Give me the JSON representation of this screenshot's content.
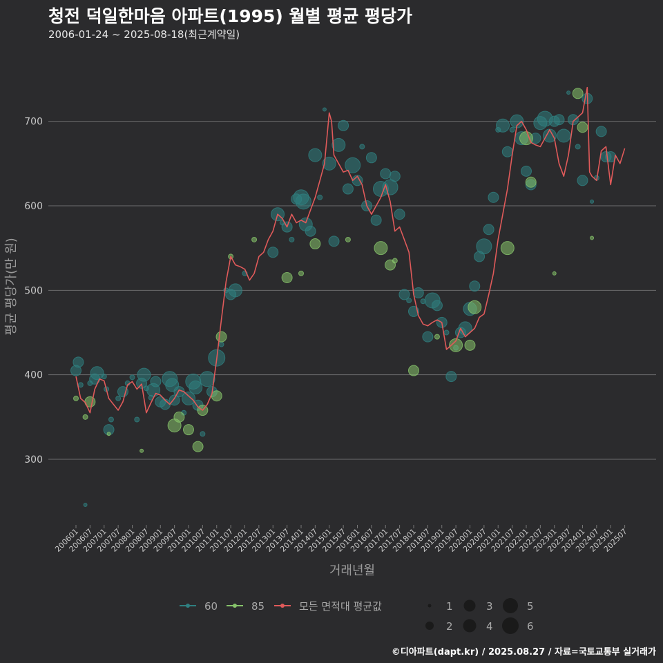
{
  "chart_data": {
    "type": "scatter+line",
    "title": "청전 덕일한마음 아파트(1995) 월별 평균 평당가",
    "subtitle": "2006-01-24 ~ 2025-08-18(최근계약일)",
    "xlabel": "거래년월",
    "ylabel": "평균 평당가(만 원)",
    "yticks": [
      300,
      400,
      500,
      600,
      700
    ],
    "ylim": [
      220,
      770
    ],
    "x_tick_labels": [
      "200601",
      "200607",
      "200701",
      "200707",
      "200801",
      "200807",
      "200901",
      "200907",
      "201001",
      "201007",
      "201101",
      "201107",
      "201201",
      "201207",
      "201301",
      "201307",
      "201401",
      "201407",
      "201501",
      "201507",
      "201601",
      "201607",
      "201701",
      "201707",
      "201801",
      "201807",
      "201901",
      "201907",
      "202001",
      "202007",
      "202101",
      "202107",
      "202201",
      "202207",
      "202301",
      "202307",
      "202401",
      "202407",
      "202501",
      "202507"
    ],
    "colors": {
      "s60": "#2f7f80",
      "s85": "#86c36a",
      "avg": "#e05a5a"
    },
    "line": {
      "name": "모든 면적대 평균값",
      "points": [
        [
          "200601",
          398
        ],
        [
          "200603",
          372
        ],
        [
          "200605",
          367
        ],
        [
          "200607",
          355
        ],
        [
          "200609",
          383
        ],
        [
          "200611",
          395
        ],
        [
          "200701",
          393
        ],
        [
          "200703",
          372
        ],
        [
          "200705",
          365
        ],
        [
          "200707",
          358
        ],
        [
          "200709",
          368
        ],
        [
          "200711",
          388
        ],
        [
          "200801",
          392
        ],
        [
          "200803",
          383
        ],
        [
          "200805",
          389
        ],
        [
          "200807",
          355
        ],
        [
          "200809",
          367
        ],
        [
          "200811",
          378
        ],
        [
          "200901",
          376
        ],
        [
          "200903",
          370
        ],
        [
          "200905",
          365
        ],
        [
          "200907",
          372
        ],
        [
          "200909",
          382
        ],
        [
          "200911",
          380
        ],
        [
          "201001",
          375
        ],
        [
          "201003",
          370
        ],
        [
          "201005",
          362
        ],
        [
          "201007",
          358
        ],
        [
          "201009",
          365
        ],
        [
          "201011",
          378
        ],
        [
          "201101",
          418
        ],
        [
          "201103",
          465
        ],
        [
          "201105",
          510
        ],
        [
          "201107",
          540
        ],
        [
          "201109",
          530
        ],
        [
          "201111",
          528
        ],
        [
          "201201",
          525
        ],
        [
          "201203",
          512
        ],
        [
          "201205",
          520
        ],
        [
          "201207",
          540
        ],
        [
          "201209",
          545
        ],
        [
          "201211",
          560
        ],
        [
          "201301",
          570
        ],
        [
          "201303",
          590
        ],
        [
          "201305",
          585
        ],
        [
          "201307",
          575
        ],
        [
          "201309",
          590
        ],
        [
          "201311",
          580
        ],
        [
          "201401",
          583
        ],
        [
          "201403",
          580
        ],
        [
          "201405",
          595
        ],
        [
          "201407",
          610
        ],
        [
          "201409",
          630
        ],
        [
          "201411",
          650
        ],
        [
          "201501",
          710
        ],
        [
          "201502",
          700
        ],
        [
          "201503",
          660
        ],
        [
          "201505",
          650
        ],
        [
          "201507",
          640
        ],
        [
          "201509",
          642
        ],
        [
          "201511",
          630
        ],
        [
          "201601",
          635
        ],
        [
          "201603",
          625
        ],
        [
          "201605",
          600
        ],
        [
          "201607",
          590
        ],
        [
          "201609",
          600
        ],
        [
          "201611",
          610
        ],
        [
          "201701",
          625
        ],
        [
          "201703",
          605
        ],
        [
          "201705",
          570
        ],
        [
          "201707",
          575
        ],
        [
          "201709",
          560
        ],
        [
          "201711",
          545
        ],
        [
          "201801",
          495
        ],
        [
          "201803",
          470
        ],
        [
          "201805",
          460
        ],
        [
          "201807",
          458
        ],
        [
          "201809",
          462
        ],
        [
          "201811",
          465
        ],
        [
          "201901",
          462
        ],
        [
          "201903",
          430
        ],
        [
          "201905",
          435
        ],
        [
          "201907",
          440
        ],
        [
          "201909",
          455
        ],
        [
          "201911",
          445
        ],
        [
          "202001",
          450
        ],
        [
          "202003",
          455
        ],
        [
          "202005",
          468
        ],
        [
          "202007",
          472
        ],
        [
          "202009",
          495
        ],
        [
          "202011",
          520
        ],
        [
          "202101",
          560
        ],
        [
          "202103",
          590
        ],
        [
          "202105",
          620
        ],
        [
          "202107",
          660
        ],
        [
          "202109",
          695
        ],
        [
          "202111",
          700
        ],
        [
          "202201",
          690
        ],
        [
          "202203",
          675
        ],
        [
          "202205",
          672
        ],
        [
          "202207",
          670
        ],
        [
          "202209",
          680
        ],
        [
          "202211",
          690
        ],
        [
          "202301",
          680
        ],
        [
          "202303",
          650
        ],
        [
          "202305",
          635
        ],
        [
          "202307",
          660
        ],
        [
          "202309",
          700
        ],
        [
          "202311",
          705
        ],
        [
          "202401",
          710
        ],
        [
          "202403",
          740
        ],
        [
          "202404",
          640
        ],
        [
          "202405",
          635
        ],
        [
          "202407",
          630
        ],
        [
          "202409",
          665
        ],
        [
          "202411",
          670
        ],
        [
          "202501",
          625
        ],
        [
          "202503",
          660
        ],
        [
          "202505",
          650
        ],
        [
          "202507",
          668
        ]
      ]
    },
    "series": [
      {
        "name": "60",
        "points": [
          [
            "200601",
            405,
            3
          ],
          [
            "200602",
            415,
            3
          ],
          [
            "200603",
            388,
            2
          ],
          [
            "200605",
            246,
            1
          ],
          [
            "200607",
            390,
            2
          ],
          [
            "200609",
            395,
            3
          ],
          [
            "200610",
            402,
            4
          ],
          [
            "200701",
            398,
            2
          ],
          [
            "200702",
            383,
            2
          ],
          [
            "200703",
            335,
            3
          ],
          [
            "200704",
            347,
            2
          ],
          [
            "200707",
            372,
            2
          ],
          [
            "200709",
            380,
            3
          ],
          [
            "200711",
            390,
            2
          ],
          [
            "200801",
            397,
            2
          ],
          [
            "200803",
            347,
            2
          ],
          [
            "200805",
            390,
            3
          ],
          [
            "200806",
            400,
            4
          ],
          [
            "200807",
            384,
            2
          ],
          [
            "200809",
            373,
            2
          ],
          [
            "200810",
            382,
            4
          ],
          [
            "200811",
            392,
            3
          ],
          [
            "200901",
            368,
            3
          ],
          [
            "200903",
            365,
            3
          ],
          [
            "200905",
            395,
            5
          ],
          [
            "200906",
            388,
            4
          ],
          [
            "200907",
            370,
            3
          ],
          [
            "200909",
            380,
            3
          ],
          [
            "200911",
            355,
            2
          ],
          [
            "201001",
            372,
            4
          ],
          [
            "201003",
            392,
            5
          ],
          [
            "201004",
            385,
            4
          ],
          [
            "201005",
            364,
            3
          ],
          [
            "201007",
            330,
            2
          ],
          [
            "201009",
            395,
            5
          ],
          [
            "201011",
            380,
            3
          ],
          [
            "201101",
            420,
            6
          ],
          [
            "201103",
            436,
            2
          ],
          [
            "201105",
            500,
            2
          ],
          [
            "201107",
            495,
            3
          ],
          [
            "201109",
            500,
            4
          ],
          [
            "201201",
            520,
            2
          ],
          [
            "201301",
            545,
            3
          ],
          [
            "201303",
            590,
            4
          ],
          [
            "201305",
            580,
            2
          ],
          [
            "201307",
            575,
            3
          ],
          [
            "201309",
            560,
            2
          ],
          [
            "201311",
            608,
            3
          ],
          [
            "201401",
            610,
            5
          ],
          [
            "201402",
            605,
            5
          ],
          [
            "201403",
            578,
            4
          ],
          [
            "201405",
            570,
            3
          ],
          [
            "201407",
            660,
            4
          ],
          [
            "201409",
            610,
            2
          ],
          [
            "201411",
            714,
            1
          ],
          [
            "201501",
            650,
            4
          ],
          [
            "201503",
            558,
            3
          ],
          [
            "201505",
            672,
            4
          ],
          [
            "201507",
            695,
            3
          ],
          [
            "201509",
            620,
            3
          ],
          [
            "201511",
            648,
            5
          ],
          [
            "201601",
            630,
            3
          ],
          [
            "201603",
            670,
            2
          ],
          [
            "201605",
            600,
            3
          ],
          [
            "201607",
            657,
            3
          ],
          [
            "201609",
            583,
            3
          ],
          [
            "201611",
            620,
            5
          ],
          [
            "201701",
            638,
            3
          ],
          [
            "201703",
            622,
            5
          ],
          [
            "201705",
            635,
            3
          ],
          [
            "201707",
            590,
            3
          ],
          [
            "201709",
            495,
            3
          ],
          [
            "201711",
            488,
            2
          ],
          [
            "201801",
            475,
            3
          ],
          [
            "201803",
            497,
            3
          ],
          [
            "201805",
            487,
            2
          ],
          [
            "201807",
            445,
            3
          ],
          [
            "201809",
            488,
            5
          ],
          [
            "201811",
            482,
            3
          ],
          [
            "201901",
            462,
            3
          ],
          [
            "201903",
            450,
            2
          ],
          [
            "201905",
            398,
            3
          ],
          [
            "201907",
            432,
            2
          ],
          [
            "201909",
            450,
            3
          ],
          [
            "201911",
            455,
            4
          ],
          [
            "202001",
            478,
            4
          ],
          [
            "202003",
            505,
            3
          ],
          [
            "202005",
            540,
            3
          ],
          [
            "202007",
            552,
            5
          ],
          [
            "202009",
            572,
            3
          ],
          [
            "202011",
            610,
            3
          ],
          [
            "202101",
            690,
            2
          ],
          [
            "202103",
            695,
            4
          ],
          [
            "202105",
            664,
            3
          ],
          [
            "202107",
            690,
            2
          ],
          [
            "202109",
            700,
            4
          ],
          [
            "202111",
            680,
            4
          ],
          [
            "202201",
            641,
            3
          ],
          [
            "202203",
            625,
            3
          ],
          [
            "202205",
            680,
            3
          ],
          [
            "202207",
            698,
            4
          ],
          [
            "202209",
            703,
            5
          ],
          [
            "202211",
            683,
            4
          ],
          [
            "202301",
            700,
            3
          ],
          [
            "202303",
            702,
            3
          ],
          [
            "202305",
            683,
            4
          ],
          [
            "202307",
            734,
            1
          ],
          [
            "202309",
            702,
            3
          ],
          [
            "202311",
            670,
            2
          ],
          [
            "202401",
            630,
            3
          ],
          [
            "202403",
            727,
            3
          ],
          [
            "202405",
            605,
            1
          ],
          [
            "202407",
            633,
            2
          ],
          [
            "202409",
            688,
            3
          ],
          [
            "202411",
            658,
            3
          ],
          [
            "202501",
            658,
            3
          ]
        ]
      },
      {
        "name": "85",
        "points": [
          [
            "200601",
            372,
            2
          ],
          [
            "200605",
            350,
            2
          ],
          [
            "200607",
            368,
            3
          ],
          [
            "200703",
            330,
            1
          ],
          [
            "200805",
            310,
            1
          ],
          [
            "200907",
            340,
            4
          ],
          [
            "200909",
            350,
            3
          ],
          [
            "201001",
            335,
            3
          ],
          [
            "201005",
            315,
            3
          ],
          [
            "201007",
            358,
            3
          ],
          [
            "201101",
            375,
            3
          ],
          [
            "201103",
            445,
            3
          ],
          [
            "201107",
            540,
            2
          ],
          [
            "201205",
            560,
            2
          ],
          [
            "201307",
            515,
            3
          ],
          [
            "201401",
            520,
            2
          ],
          [
            "201407",
            555,
            3
          ],
          [
            "201509",
            560,
            2
          ],
          [
            "201611",
            550,
            4
          ],
          [
            "201703",
            530,
            3
          ],
          [
            "201705",
            535,
            2
          ],
          [
            "201801",
            405,
            3
          ],
          [
            "201811",
            445,
            2
          ],
          [
            "201907",
            435,
            4
          ],
          [
            "202001",
            435,
            3
          ],
          [
            "202003",
            480,
            4
          ],
          [
            "202105",
            550,
            4
          ],
          [
            "202201",
            680,
            4
          ],
          [
            "202203",
            628,
            3
          ],
          [
            "202301",
            520,
            1
          ],
          [
            "202311",
            733,
            3
          ],
          [
            "202401",
            693,
            3
          ],
          [
            "202405",
            562,
            1
          ]
        ]
      }
    ]
  },
  "legend": {
    "series": [
      {
        "label": "60"
      },
      {
        "label": "85"
      },
      {
        "label": "모든 면적대 평균값"
      }
    ],
    "sizes": [
      "1",
      "2",
      "3",
      "4",
      "5",
      "6"
    ]
  },
  "footer": "©디아파트(dapt.kr) / 2025.08.27 / 자료=국토교통부 실거래가"
}
